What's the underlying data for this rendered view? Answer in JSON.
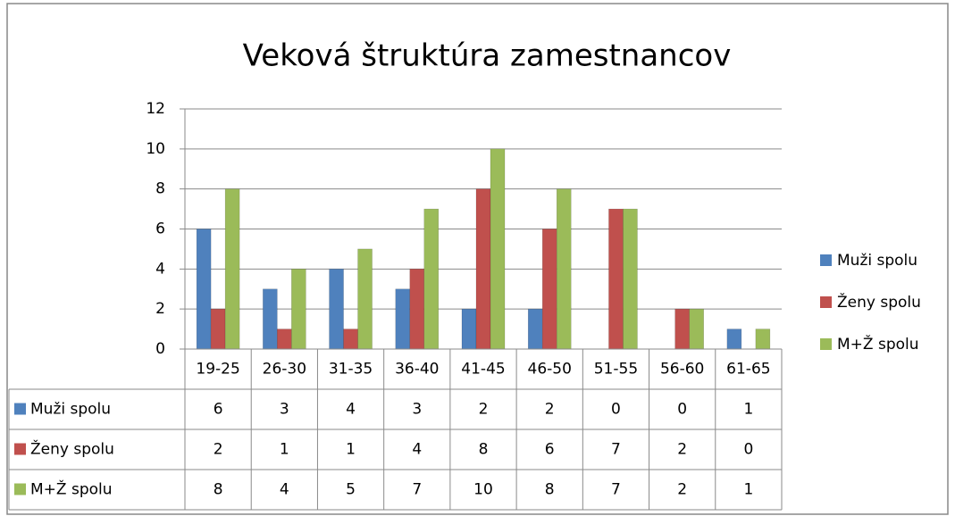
{
  "chart_data": {
    "type": "bar",
    "title": "Veková štruktúra zamestnancov",
    "categories": [
      "19-25",
      "26-30",
      "31-35",
      "36-40",
      "41-45",
      "46-50",
      "51-55",
      "56-60",
      "61-65"
    ],
    "series": [
      {
        "name": "Muži spolu",
        "color": "#4f81bd",
        "values": [
          6,
          3,
          4,
          3,
          2,
          2,
          0,
          0,
          1
        ]
      },
      {
        "name": "Ženy spolu",
        "color": "#c0504d",
        "values": [
          2,
          1,
          1,
          4,
          8,
          6,
          7,
          2,
          0
        ]
      },
      {
        "name": "M+Ž spolu",
        "color": "#9bbb59",
        "values": [
          8,
          4,
          5,
          7,
          10,
          8,
          7,
          2,
          1
        ]
      }
    ],
    "ylim": [
      0,
      12
    ],
    "yticks": [
      0,
      2,
      4,
      6,
      8,
      10,
      12
    ],
    "grid": true,
    "legend": "right",
    "data_table": true
  }
}
